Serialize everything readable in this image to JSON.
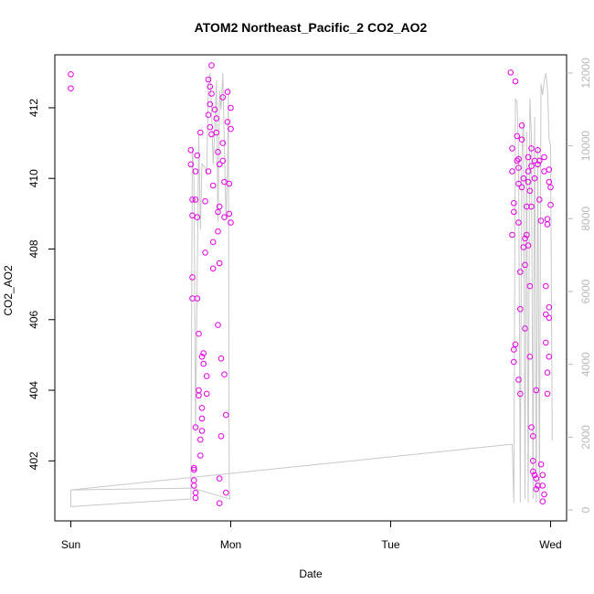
{
  "chart_data": {
    "type": "scatter",
    "title": "ATOM2 Northeast_Pacific_2 CO2_AO2",
    "xlabel": "Date",
    "ylabel": "CO2_AO2",
    "x_ticks": [
      "Sun",
      "Mon",
      "Tue",
      "Wed"
    ],
    "y_ticks": [
      "402",
      "404",
      "406",
      "408",
      "410",
      "412"
    ],
    "y2_ticks": [
      "0",
      "2000",
      "4000",
      "6000",
      "8000",
      "10000",
      "12000"
    ],
    "x_range_days": [
      -0.1,
      3.1
    ],
    "ylim": [
      400.3,
      413.5
    ],
    "y2lim": [
      -300,
      12500
    ],
    "colors": {
      "points": "#e600e6",
      "line": "#c8c8c8",
      "right_axis": "#b8b8b8"
    },
    "series": [
      {
        "type": "scatter",
        "points": [
          [
            0.0,
            412.95
          ],
          [
            0.0,
            412.55
          ],
          [
            0.75,
            410.8
          ],
          [
            0.75,
            410.4
          ],
          [
            0.76,
            409.4
          ],
          [
            0.76,
            408.95
          ],
          [
            0.76,
            407.2
          ],
          [
            0.76,
            406.6
          ],
          [
            0.77,
            401.75
          ],
          [
            0.77,
            401.45
          ],
          [
            0.77,
            401.3
          ],
          [
            0.78,
            401.1
          ],
          [
            0.78,
            400.95
          ],
          [
            0.77,
            401.8
          ],
          [
            0.78,
            402.95
          ],
          [
            0.78,
            410.2
          ],
          [
            0.78,
            409.4
          ],
          [
            0.79,
            408.9
          ],
          [
            0.79,
            406.6
          ],
          [
            0.79,
            410.65
          ],
          [
            0.8,
            405.6
          ],
          [
            0.8,
            404.0
          ],
          [
            0.8,
            403.85
          ],
          [
            0.81,
            402.6
          ],
          [
            0.81,
            402.15
          ],
          [
            0.81,
            411.3
          ],
          [
            0.82,
            404.95
          ],
          [
            0.82,
            403.5
          ],
          [
            0.82,
            403.2
          ],
          [
            0.82,
            402.85
          ],
          [
            0.83,
            405.05
          ],
          [
            0.83,
            404.75
          ],
          [
            0.84,
            409.35
          ],
          [
            0.84,
            407.9
          ],
          [
            0.85,
            404.4
          ],
          [
            0.85,
            403.9
          ],
          [
            0.86,
            410.2
          ],
          [
            0.86,
            411.8
          ],
          [
            0.86,
            412.8
          ],
          [
            0.87,
            412.6
          ],
          [
            0.87,
            412.1
          ],
          [
            0.87,
            411.45
          ],
          [
            0.88,
            413.2
          ],
          [
            0.88,
            412.4
          ],
          [
            0.88,
            411.25
          ],
          [
            0.89,
            409.8
          ],
          [
            0.89,
            408.2
          ],
          [
            0.89,
            407.45
          ],
          [
            0.9,
            411.95
          ],
          [
            0.91,
            411.7
          ],
          [
            0.91,
            411.3
          ],
          [
            0.92,
            410.75
          ],
          [
            0.92,
            409.05
          ],
          [
            0.92,
            408.5
          ],
          [
            0.93,
            410.4
          ],
          [
            0.93,
            409.2
          ],
          [
            0.93,
            407.6
          ],
          [
            0.94,
            404.9
          ],
          [
            0.94,
            402.7
          ],
          [
            0.95,
            412.3
          ],
          [
            0.95,
            411.0
          ],
          [
            0.95,
            410.5
          ],
          [
            0.96,
            409.9
          ],
          [
            0.96,
            408.9
          ],
          [
            0.96,
            404.45
          ],
          [
            0.97,
            403.3
          ],
          [
            0.97,
            401.1
          ],
          [
            0.98,
            412.45
          ],
          [
            0.98,
            411.6
          ],
          [
            0.99,
            409.85
          ],
          [
            0.99,
            409.0
          ],
          [
            1.0,
            408.75
          ],
          [
            1.0,
            412.0
          ],
          [
            1.0,
            411.4
          ],
          [
            0.93,
            400.8
          ],
          [
            0.93,
            401.5
          ],
          [
            0.92,
            405.85
          ],
          [
            2.75,
            413.0
          ],
          [
            2.78,
            412.75
          ],
          [
            2.8,
            410.55
          ],
          [
            2.76,
            410.85
          ],
          [
            2.76,
            410.2
          ],
          [
            2.77,
            409.3
          ],
          [
            2.77,
            409.05
          ],
          [
            2.76,
            408.4
          ],
          [
            2.77,
            405.15
          ],
          [
            2.77,
            404.8
          ],
          [
            2.78,
            405.3
          ],
          [
            2.79,
            411.2
          ],
          [
            2.79,
            410.5
          ],
          [
            2.8,
            410.3
          ],
          [
            2.8,
            409.85
          ],
          [
            2.8,
            408.75
          ],
          [
            2.81,
            407.35
          ],
          [
            2.81,
            406.3
          ],
          [
            2.81,
            403.9
          ],
          [
            2.82,
            411.5
          ],
          [
            2.82,
            411.1
          ],
          [
            2.83,
            410.0
          ],
          [
            2.83,
            408.05
          ],
          [
            2.84,
            407.55
          ],
          [
            2.84,
            405.75
          ],
          [
            2.85,
            408.4
          ],
          [
            2.85,
            409.2
          ],
          [
            2.86,
            410.6
          ],
          [
            2.86,
            410.2
          ],
          [
            2.86,
            409.9
          ],
          [
            2.87,
            409.65
          ],
          [
            2.87,
            406.95
          ],
          [
            2.87,
            404.95
          ],
          [
            2.88,
            410.35
          ],
          [
            2.88,
            409.2
          ],
          [
            2.89,
            402.7
          ],
          [
            2.89,
            401.7
          ],
          [
            2.9,
            410.5
          ],
          [
            2.9,
            410.0
          ],
          [
            2.91,
            404.0
          ],
          [
            2.91,
            401.5
          ],
          [
            2.91,
            401.2
          ],
          [
            2.92,
            410.8
          ],
          [
            2.92,
            410.4
          ],
          [
            2.93,
            410.5
          ],
          [
            2.93,
            409.4
          ],
          [
            2.94,
            408.8
          ],
          [
            2.94,
            401.9
          ],
          [
            2.95,
            401.6
          ],
          [
            2.95,
            401.3
          ],
          [
            2.96,
            410.6
          ],
          [
            2.96,
            410.2
          ],
          [
            2.97,
            406.95
          ],
          [
            2.97,
            406.15
          ],
          [
            2.97,
            405.35
          ],
          [
            2.98,
            403.9
          ],
          [
            2.98,
            404.5
          ],
          [
            2.99,
            404.95
          ],
          [
            2.99,
            410.25
          ],
          [
            3.0,
            409.75
          ],
          [
            3.0,
            409.25
          ],
          [
            2.99,
            409.9
          ],
          [
            2.98,
            408.7
          ],
          [
            2.98,
            408.85
          ],
          [
            2.99,
            406.05
          ],
          [
            2.99,
            406.35
          ],
          [
            2.88,
            402.95
          ],
          [
            2.89,
            402.0
          ],
          [
            2.9,
            401.6
          ],
          [
            2.92,
            401.3
          ],
          [
            2.95,
            400.85
          ],
          [
            2.96,
            401.05
          ],
          [
            2.8,
            404.3
          ],
          [
            2.82,
            409.75
          ],
          [
            2.84,
            408.3
          ],
          [
            2.86,
            408.1
          ],
          [
            2.88,
            410.85
          ]
        ]
      },
      {
        "type": "line",
        "axis": "right",
        "points": [
          [
            0.0,
            550
          ],
          [
            0.0,
            100
          ],
          [
            0.02,
            100
          ],
          [
            0.74,
            300
          ],
          [
            0.75,
            300
          ],
          [
            0.76,
            10000
          ],
          [
            0.77,
            9000
          ],
          [
            0.78,
            2100
          ],
          [
            0.8,
            10300
          ],
          [
            0.81,
            7700
          ],
          [
            0.82,
            9500
          ],
          [
            0.84,
            9400
          ],
          [
            0.85,
            9200
          ],
          [
            0.86,
            11700
          ],
          [
            0.87,
            12000
          ],
          [
            0.88,
            11000
          ],
          [
            0.89,
            9500
          ],
          [
            0.9,
            10400
          ],
          [
            0.91,
            11800
          ],
          [
            0.92,
            7900
          ],
          [
            0.93,
            11500
          ],
          [
            0.94,
            11000
          ],
          [
            0.95,
            12000
          ],
          [
            0.96,
            10000
          ],
          [
            0.97,
            8000
          ],
          [
            0.98,
            9400
          ],
          [
            0.985,
            11600
          ],
          [
            0.99,
            700
          ],
          [
            0.995,
            300
          ],
          [
            0.76,
            600
          ],
          [
            0.0,
            550
          ],
          [
            2.75,
            1800
          ],
          [
            2.76,
            1800
          ],
          [
            2.77,
            200
          ],
          [
            2.78,
            11300
          ],
          [
            2.79,
            11200
          ],
          [
            2.8,
            9800
          ],
          [
            2.81,
            200
          ],
          [
            2.82,
            9700
          ],
          [
            2.83,
            10700
          ],
          [
            2.84,
            300
          ],
          [
            2.85,
            10400
          ],
          [
            2.86,
            200
          ],
          [
            2.87,
            11300
          ],
          [
            2.88,
            10300
          ],
          [
            2.89,
            300
          ],
          [
            2.9,
            10800
          ],
          [
            2.91,
            200
          ],
          [
            2.92,
            10000
          ],
          [
            2.93,
            300
          ],
          [
            2.94,
            11700
          ],
          [
            2.95,
            11400
          ],
          [
            2.96,
            11800
          ],
          [
            2.97,
            12000
          ],
          [
            2.98,
            11600
          ],
          [
            2.985,
            11000
          ],
          [
            2.99,
            10200
          ],
          [
            3.0,
            10000
          ],
          [
            3.01,
            1900
          ]
        ]
      }
    ]
  }
}
